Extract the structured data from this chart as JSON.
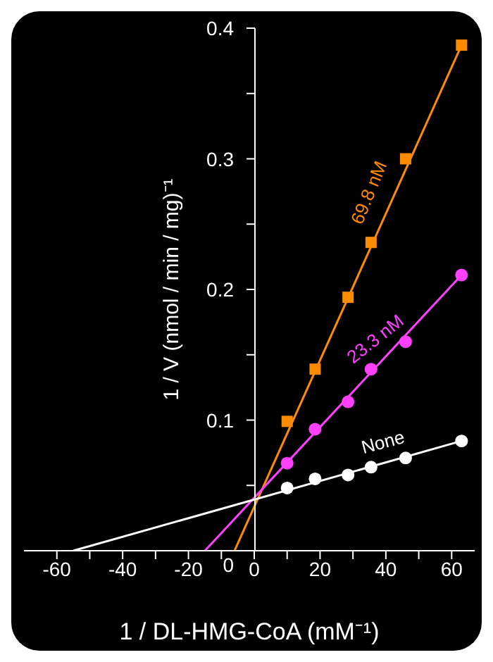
{
  "chart_data": {
    "type": "scatter",
    "xlabel": "1 / DL-HMG-CoA (mM⁻¹)",
    "ylabel": "1 / V (nmol / min / mg)⁻¹",
    "xlim": [
      -70,
      67
    ],
    "ylim": [
      0,
      0.4
    ],
    "xticks": [
      -60,
      {
        "value": -50,
        "label": null
      },
      -40,
      {
        "value": -30,
        "label": null
      },
      -20,
      {
        "value": -10,
        "label": null
      },
      0,
      {
        "value": 10,
        "label": null
      },
      20,
      {
        "value": 30,
        "label": null
      },
      40,
      {
        "value": 50,
        "label": null
      },
      60
    ],
    "yticks": [
      0,
      {
        "value": 0.05,
        "label": null
      },
      0.1,
      {
        "value": 0.15,
        "label": null
      },
      0.2,
      {
        "value": 0.25,
        "label": null
      },
      0.3,
      {
        "value": 0.35,
        "label": null
      },
      0.4
    ],
    "series": [
      {
        "name": "69.8 nM",
        "marker": "square",
        "color": "#ff8c00",
        "x": [
          10,
          18.5,
          28.5,
          35.5,
          46,
          63
        ],
        "values": [
          0.099,
          0.139,
          0.194,
          0.236,
          0.3,
          0.387
        ]
      },
      {
        "name": "23.3 nM",
        "marker": "circle",
        "color": "#ff40ff",
        "x": [
          10,
          18.5,
          28.5,
          35.5,
          46,
          63
        ],
        "values": [
          0.067,
          0.093,
          0.114,
          0.139,
          0.16,
          0.211
        ]
      },
      {
        "name": "None",
        "marker": "circle",
        "color": "#ffffff",
        "x": [
          10,
          18.5,
          28.5,
          35.5,
          46,
          63
        ],
        "values": [
          0.048,
          0.055,
          0.058,
          0.064,
          0.071,
          0.084
        ]
      },
      {
        "type": "line",
        "marker": "none",
        "color": "#ff8c00",
        "x": [
          -6,
          63
        ],
        "values": [
          0,
          0.387
        ]
      },
      {
        "type": "line",
        "marker": "none",
        "color": "#ff40ff",
        "x": [
          -15,
          63
        ],
        "values": [
          0,
          0.211
        ]
      },
      {
        "type": "line",
        "marker": "none",
        "color": "#ffffff",
        "x": [
          -55,
          63
        ],
        "values": [
          0,
          0.084
        ]
      }
    ]
  }
}
